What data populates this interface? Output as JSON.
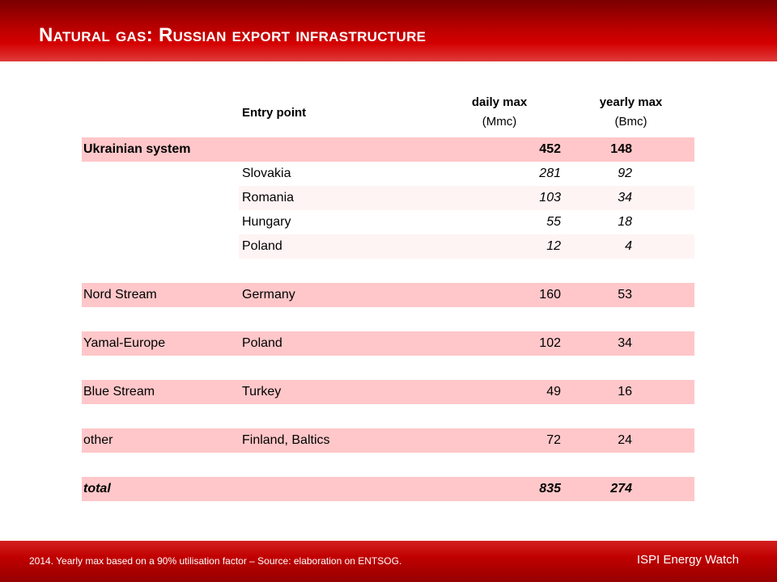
{
  "header": {
    "title": "Natural gas: Russian export infrastructure"
  },
  "table": {
    "columns": {
      "entry": "Entry point",
      "daily": "daily max",
      "daily_unit": "(Mmc)",
      "yearly": "yearly max",
      "yearly_unit": "(Bmc)"
    },
    "rows": [
      {
        "route": "Ukrainian system",
        "entry": "",
        "daily": "452",
        "yearly": "148"
      },
      {
        "route": "",
        "entry": "Slovakia",
        "daily": "281",
        "yearly": "92"
      },
      {
        "route": "",
        "entry": "Romania",
        "daily": "103",
        "yearly": "34"
      },
      {
        "route": "",
        "entry": "Hungary",
        "daily": "55",
        "yearly": "18"
      },
      {
        "route": "",
        "entry": "Poland",
        "daily": "12",
        "yearly": "4"
      },
      {
        "route": "Nord Stream",
        "entry": "Germany",
        "daily": "160",
        "yearly": "53"
      },
      {
        "route": "Yamal-Europe",
        "entry": "Poland",
        "daily": "102",
        "yearly": "34"
      },
      {
        "route": "Blue Stream",
        "entry": "Turkey",
        "daily": "49",
        "yearly": "16"
      },
      {
        "route": "other",
        "entry": "Finland, Baltics",
        "daily": "72",
        "yearly": "24"
      },
      {
        "route": "total",
        "entry": "",
        "daily": "835",
        "yearly": "274"
      }
    ]
  },
  "footer": {
    "note": "2014. Yearly max  based on a 90% utilisation factor – Source: elaboration on ENTSOG.",
    "brand": "ISPI Energy Watch"
  },
  "colors": {
    "header_red": "#b80000",
    "row_pink": "#ffc7c9",
    "row_light": "#fff4f4"
  }
}
